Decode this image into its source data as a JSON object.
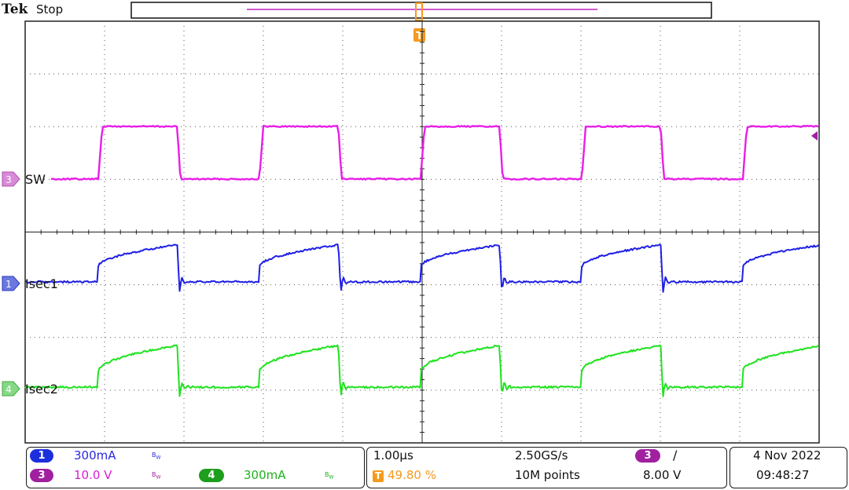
{
  "header": {
    "brand": "Tek",
    "run_state": "Stop"
  },
  "trigger": {
    "marker": "T",
    "position_percent": 49.8,
    "position_label": "49.80 %",
    "level": "8.00 V",
    "source_badge": "3",
    "slope_glyph": "/"
  },
  "channels": [
    {
      "number": "1",
      "label": "Isec1",
      "scale": "300mA",
      "bw": "B",
      "bw_sub": "W",
      "color": "#1f1fe6"
    },
    {
      "number": "3",
      "label": "SW",
      "scale": "10.0 V",
      "bw": "B",
      "bw_sub": "W",
      "color": "#e81ee8"
    },
    {
      "number": "4",
      "label": "Isec2",
      "scale": "300mA",
      "bw": "B",
      "bw_sub": "W",
      "color": "#1ee31e"
    }
  ],
  "horizontal": {
    "timebase": "1.00µs",
    "sample_rate": "2.50GS/s",
    "record_length": "10M points"
  },
  "datetime": {
    "date": "4 Nov 2022",
    "time": "09:48:27"
  },
  "colors": {
    "ch1": "#1f1fe6",
    "ch3": "#e81ee8",
    "ch4": "#1ee31e",
    "trigger": "#f59a1e",
    "ch3_badge": "#a020a0",
    "ch4_badge": "#1d9e1d",
    "ch1_badge": "#1c2fdc"
  }
}
